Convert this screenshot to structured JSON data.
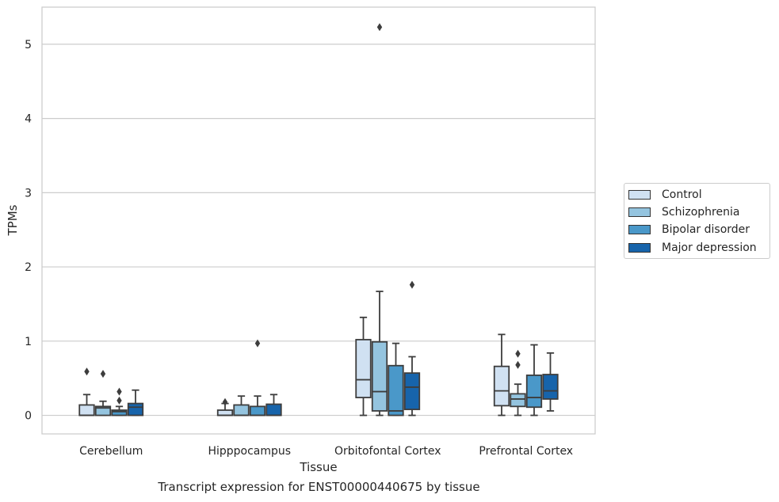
{
  "chart_data": {
    "type": "box",
    "title": "",
    "caption": "Transcript expression for ENST00000440675 by tissue",
    "xlabel": "Tissue",
    "ylabel": "TPMs",
    "ylim": [
      -0.25,
      5.5
    ],
    "yticks": [
      0,
      1,
      2,
      3,
      4,
      5
    ],
    "grid": "horizontal",
    "legend_position": "right",
    "categories": [
      "Cerebellum",
      "Hipppocampus",
      "Orbitofontal Cortex",
      "Prefrontal Cortex"
    ],
    "series": [
      {
        "name": "Control",
        "color": "#d0e1f2",
        "boxes": [
          {
            "q1": 0.0,
            "median": 0.0,
            "q3": 0.14,
            "whisker_low": 0.0,
            "whisker_high": 0.28,
            "outliers": [
              0.59
            ]
          },
          {
            "q1": 0.0,
            "median": 0.0,
            "q3": 0.07,
            "whisker_low": 0.0,
            "whisker_high": 0.16,
            "outliers": [
              0.18
            ]
          },
          {
            "q1": 0.24,
            "median": 0.48,
            "q3": 1.02,
            "whisker_low": 0.0,
            "whisker_high": 1.32,
            "outliers": []
          },
          {
            "q1": 0.13,
            "median": 0.33,
            "q3": 0.66,
            "whisker_low": 0.0,
            "whisker_high": 1.09,
            "outliers": []
          }
        ]
      },
      {
        "name": "Schizophrenia",
        "color": "#94c4df",
        "boxes": [
          {
            "q1": 0.0,
            "median": 0.1,
            "q3": 0.12,
            "whisker_low": 0.0,
            "whisker_high": 0.19,
            "outliers": [
              0.56
            ]
          },
          {
            "q1": 0.0,
            "median": 0.0,
            "q3": 0.14,
            "whisker_low": 0.0,
            "whisker_high": 0.26,
            "outliers": []
          },
          {
            "q1": 0.06,
            "median": 0.32,
            "q3": 0.99,
            "whisker_low": 0.0,
            "whisker_high": 1.67,
            "outliers": [
              5.23
            ]
          },
          {
            "q1": 0.12,
            "median": 0.22,
            "q3": 0.29,
            "whisker_low": 0.0,
            "whisker_high": 0.42,
            "outliers": [
              0.68,
              0.83
            ]
          }
        ]
      },
      {
        "name": "Bipolar disorder",
        "color": "#4a98c9",
        "boxes": [
          {
            "q1": 0.0,
            "median": 0.05,
            "q3": 0.07,
            "whisker_low": 0.0,
            "whisker_high": 0.12,
            "outliers": [
              0.2,
              0.32
            ]
          },
          {
            "q1": 0.0,
            "median": 0.0,
            "q3": 0.12,
            "whisker_low": 0.0,
            "whisker_high": 0.26,
            "outliers": [
              0.97
            ]
          },
          {
            "q1": 0.0,
            "median": 0.06,
            "q3": 0.67,
            "whisker_low": 0.0,
            "whisker_high": 0.97,
            "outliers": []
          },
          {
            "q1": 0.11,
            "median": 0.24,
            "q3": 0.54,
            "whisker_low": 0.0,
            "whisker_high": 0.95,
            "outliers": []
          }
        ]
      },
      {
        "name": "Major depression",
        "color": "#1764ab",
        "boxes": [
          {
            "q1": 0.0,
            "median": 0.11,
            "q3": 0.16,
            "whisker_low": 0.0,
            "whisker_high": 0.34,
            "outliers": []
          },
          {
            "q1": 0.0,
            "median": 0.0,
            "q3": 0.15,
            "whisker_low": 0.0,
            "whisker_high": 0.28,
            "outliers": []
          },
          {
            "q1": 0.08,
            "median": 0.38,
            "q3": 0.57,
            "whisker_low": 0.0,
            "whisker_high": 0.79,
            "outliers": [
              1.76
            ]
          },
          {
            "q1": 0.22,
            "median": 0.33,
            "q3": 0.55,
            "whisker_low": 0.06,
            "whisker_high": 0.84,
            "outliers": []
          }
        ]
      }
    ]
  }
}
